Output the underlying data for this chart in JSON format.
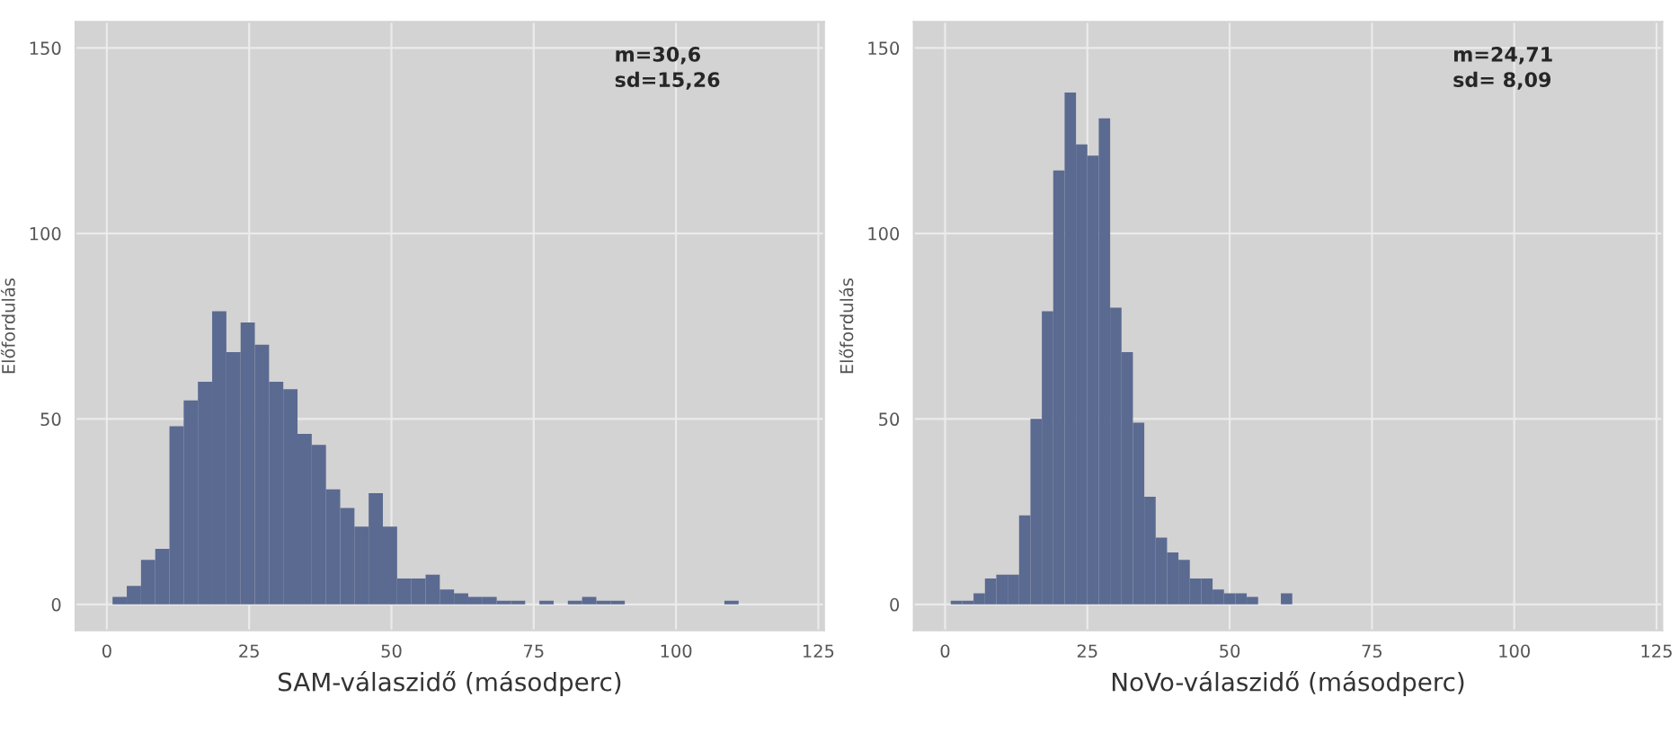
{
  "chart_data": [
    {
      "type": "histogram",
      "xlabel": "SAM-válaszidő (másodperc)",
      "ylabel": "Előfordulás",
      "annotations": [
        "m=30,6\nsd=15,26"
      ],
      "color": "#5b6a91",
      "bins": [
        1,
        3.5,
        6,
        8.5,
        11,
        13.5,
        16,
        18.5,
        21,
        23.5,
        26,
        28.5,
        31,
        33.5,
        36,
        38.5,
        41,
        43.5,
        46,
        48.5,
        51,
        53.5,
        56,
        58.5,
        61,
        63.5,
        66,
        68.5,
        71,
        73.5,
        76,
        78.5,
        81,
        83.5,
        86,
        88.5,
        91,
        93.5,
        96,
        98.5,
        101,
        103.5,
        106,
        108.5,
        111
      ],
      "values": [
        2,
        5,
        12,
        15,
        48,
        55,
        60,
        79,
        68,
        76,
        70,
        60,
        58,
        46,
        43,
        31,
        26,
        21,
        30,
        21,
        7,
        7,
        8,
        4,
        3,
        2,
        2,
        1,
        1,
        0,
        1,
        0,
        1,
        2,
        1,
        1,
        0,
        0,
        0,
        0,
        0,
        0,
        0,
        1
      ],
      "xlim": [
        -5.5,
        126
      ],
      "xticks": [
        0,
        25,
        50,
        75,
        100,
        125
      ],
      "ylim": [
        -7,
        157
      ],
      "yticks": [
        0,
        50,
        100,
        150
      ],
      "grid": true
    },
    {
      "type": "histogram",
      "xlabel": "NoVo-válaszidő (másodperc)",
      "ylabel": "Előfordulás",
      "annotations": [
        "m=24,71\nsd= 8,09"
      ],
      "color": "#5b6a91",
      "bins": [
        1,
        3,
        5,
        7,
        9,
        11,
        13,
        15,
        17,
        19,
        21,
        23,
        25,
        27,
        29,
        31,
        33,
        35,
        37,
        39,
        41,
        43,
        45,
        47,
        49,
        51,
        53,
        55,
        57,
        59,
        61
      ],
      "values": [
        1,
        1,
        3,
        7,
        8,
        8,
        24,
        50,
        79,
        117,
        138,
        124,
        121,
        131,
        80,
        68,
        49,
        29,
        18,
        14,
        12,
        7,
        7,
        4,
        3,
        3,
        2,
        0,
        0,
        3
      ],
      "xlim": [
        -5.5,
        126
      ],
      "xticks": [
        0,
        25,
        50,
        75,
        100,
        125
      ],
      "ylim": [
        -7,
        157
      ],
      "yticks": [
        0,
        50,
        100,
        150
      ],
      "grid": true
    }
  ]
}
